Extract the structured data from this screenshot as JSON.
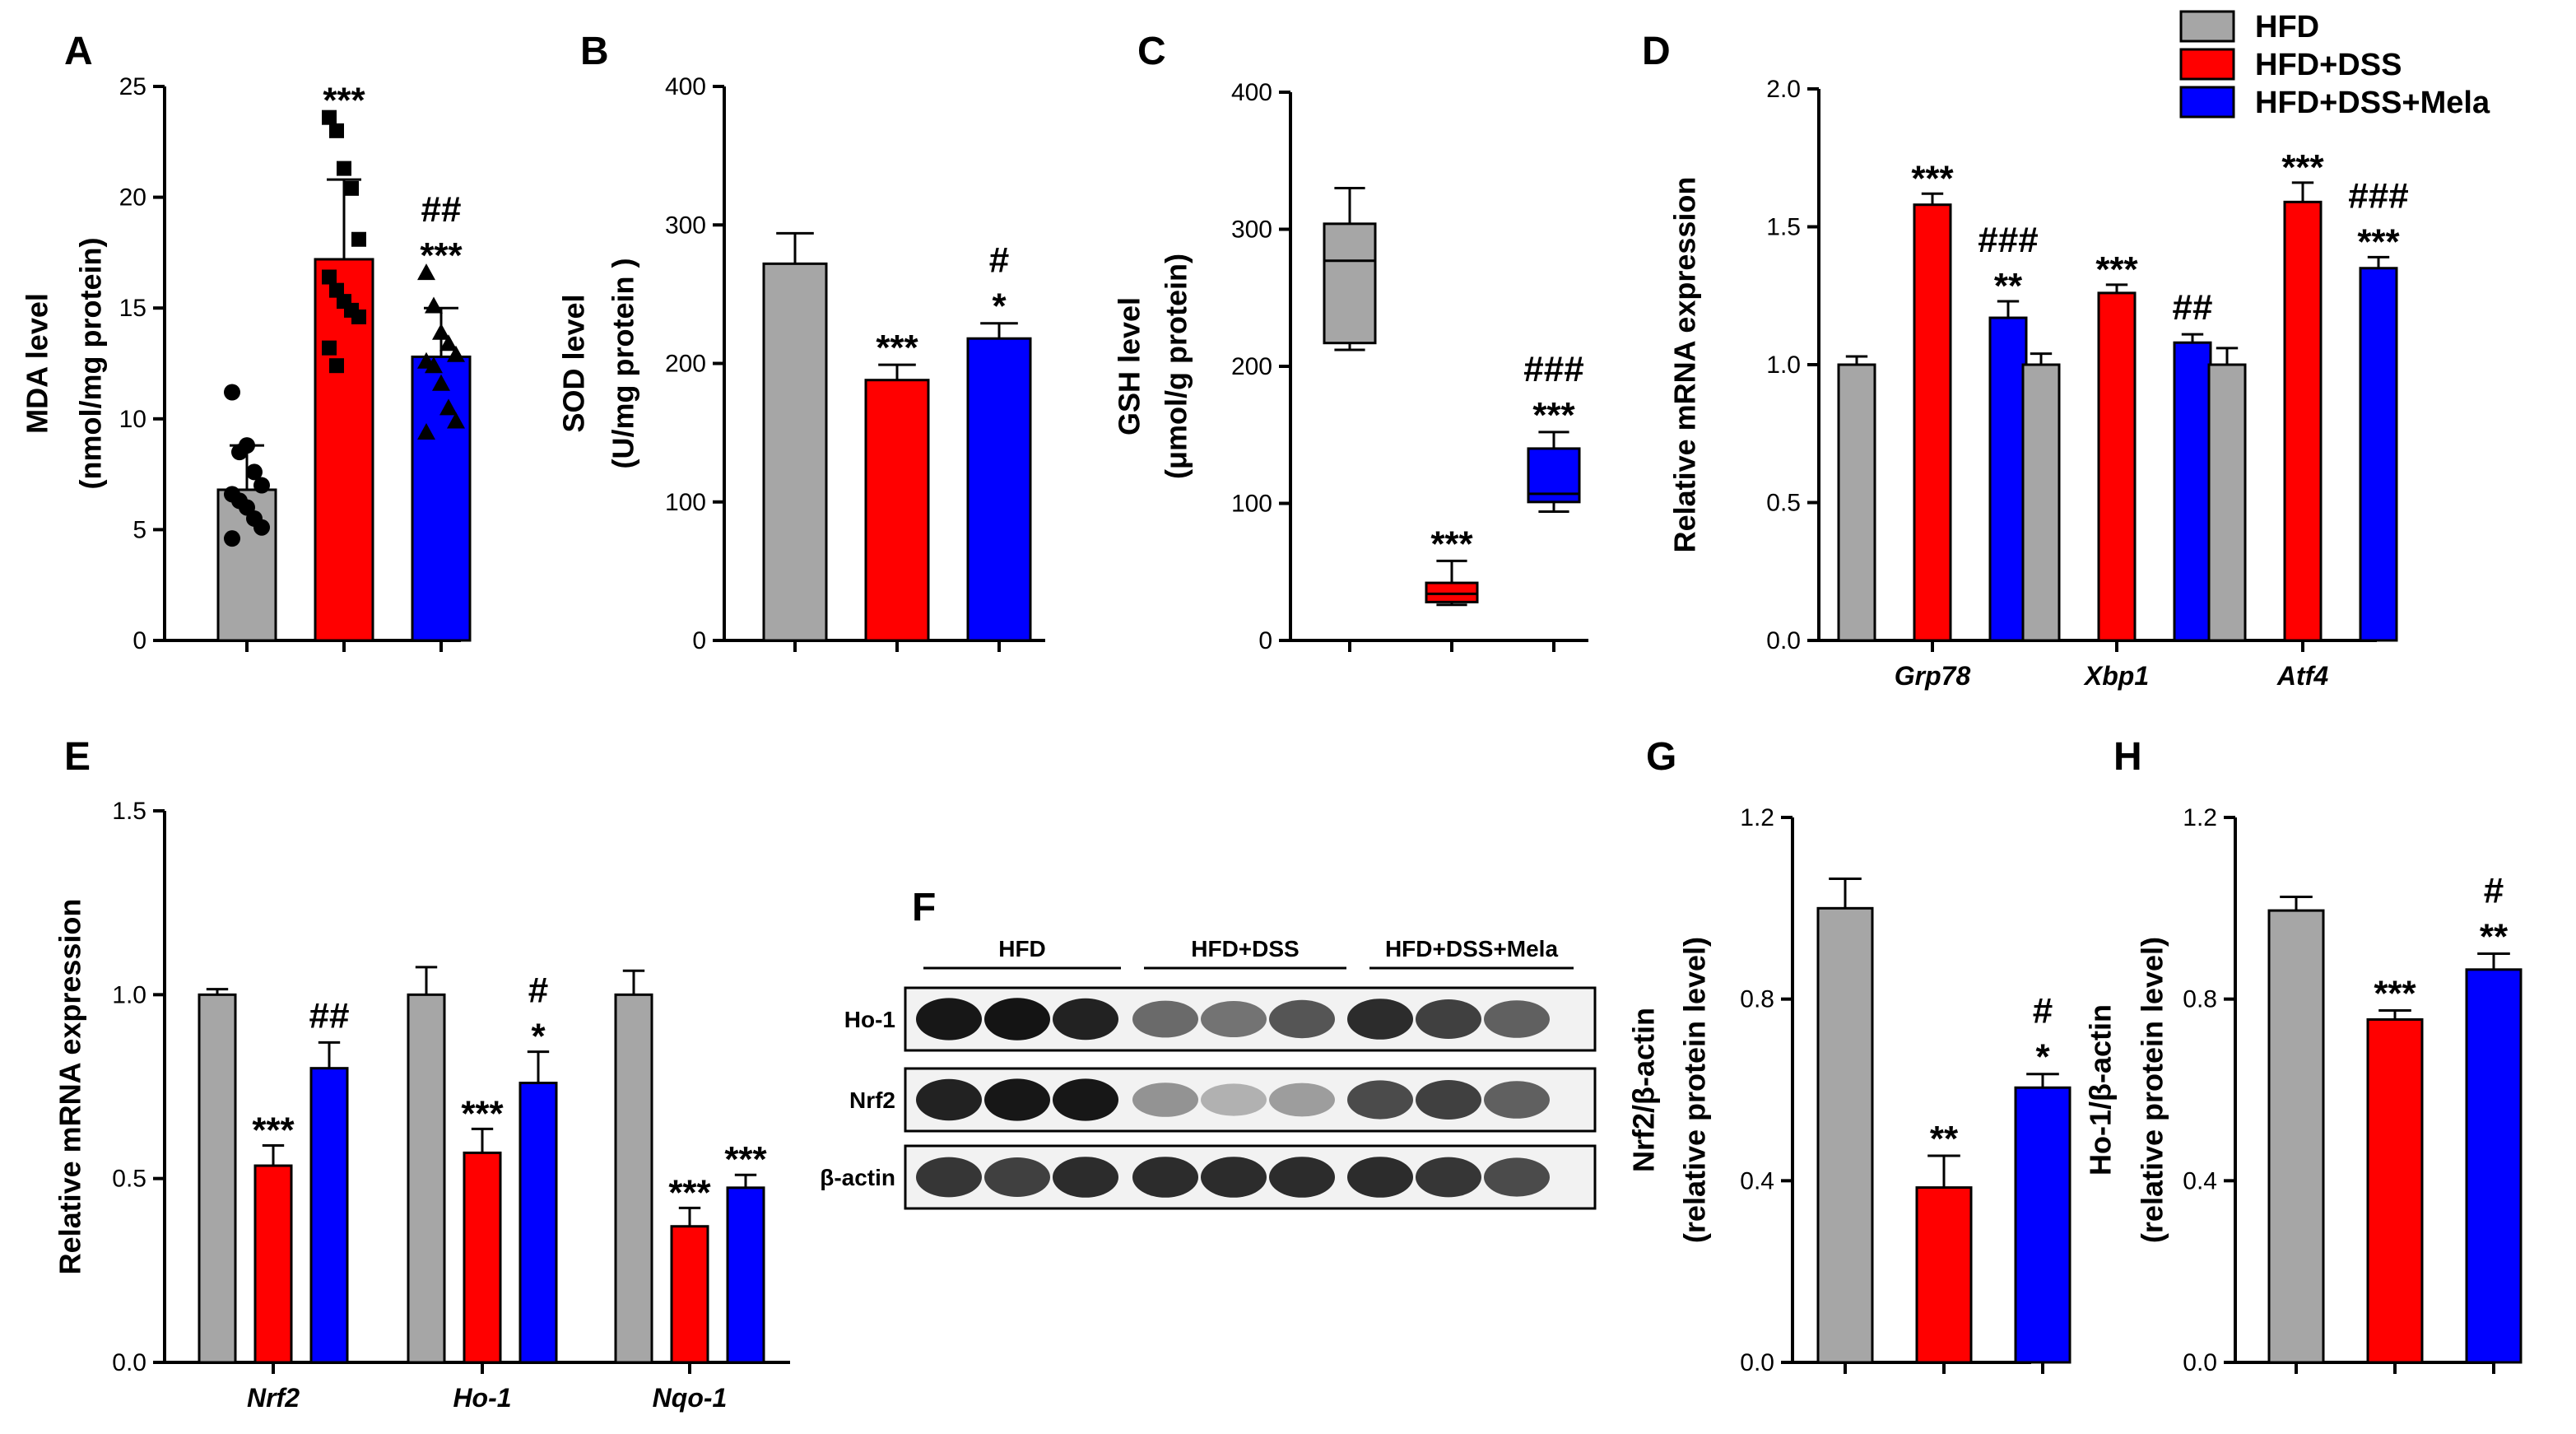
{
  "legend": {
    "entries": [
      {
        "label": "HFD",
        "color": "#A6A6A6"
      },
      {
        "label": "HFD+DSS",
        "color": "#FF0000"
      },
      {
        "label": "HFD+DSS+Mela",
        "color": "#0000FF"
      }
    ]
  },
  "chart_data": [
    {
      "panel": "A",
      "type": "bar",
      "ylabel": "MDA level",
      "ylabel2": "(nmol/mg protein)",
      "ylim": [
        0,
        25
      ],
      "ticks": [
        0,
        5,
        10,
        15,
        20,
        25
      ],
      "categories": [
        "HFD",
        "HFD+DSS",
        "HFD+DSS+Mela"
      ],
      "values": [
        6.8,
        17.2,
        12.8
      ],
      "errors": [
        2.0,
        3.6,
        2.2
      ],
      "points": [
        [
          11.2,
          8.5,
          8.8,
          7.6,
          7.0,
          6.6,
          6.3,
          6.0,
          5.5,
          5.1,
          4.6
        ],
        [
          23.6,
          23.0,
          21.3,
          20.4,
          18.1,
          16.4,
          15.8,
          15.3,
          14.9,
          14.6,
          13.2,
          12.4
        ],
        [
          16.6,
          15.1,
          13.9,
          13.4,
          12.9,
          12.6,
          12.4,
          11.6,
          10.5,
          9.9,
          9.4
        ]
      ],
      "markers": [
        "circle",
        "square",
        "triangle"
      ],
      "sig": [
        [],
        [
          "***"
        ],
        [
          "##",
          "***"
        ]
      ]
    },
    {
      "panel": "B",
      "type": "bar",
      "ylabel": "SOD level",
      "ylabel2": "(U/mg protein )",
      "ylim": [
        0,
        400
      ],
      "ticks": [
        0,
        100,
        200,
        300,
        400
      ],
      "categories": [
        "HFD",
        "HFD+DSS",
        "HFD+DSS+Mela"
      ],
      "values": [
        272,
        188,
        218
      ],
      "errors": [
        22,
        11,
        11
      ],
      "sig": [
        [],
        [
          "***"
        ],
        [
          "#",
          "*"
        ]
      ]
    },
    {
      "panel": "C",
      "type": "box",
      "ylabel": "GSH level",
      "ylabel2": "(μmol/g protein)",
      "ylim": [
        0,
        400
      ],
      "ticks": [
        0,
        100,
        200,
        300,
        400
      ],
      "categories": [
        "HFD",
        "HFD+DSS",
        "HFD+DSS+Mela"
      ],
      "boxes": [
        {
          "min": 212,
          "q1": 217,
          "median": 277,
          "q3": 304,
          "max": 330
        },
        {
          "min": 26,
          "q1": 28,
          "median": 34,
          "q3": 42,
          "max": 58
        },
        {
          "min": 94,
          "q1": 101,
          "median": 107,
          "q3": 140,
          "max": 152
        }
      ],
      "sig": [
        [],
        [
          "***"
        ],
        [
          "###",
          "***"
        ]
      ]
    },
    {
      "panel": "D",
      "type": "bar",
      "ylabel": "Relative mRNA expression",
      "ylim": [
        0,
        2.0
      ],
      "ticks": [
        "0.0",
        "0.5",
        "1.0",
        "1.5",
        "2.0"
      ],
      "categories": [
        "Grp78",
        "Xbp1",
        "Atf4"
      ],
      "series": [
        {
          "name": "HFD",
          "values": [
            1.0,
            1.0,
            1.0
          ],
          "errors": [
            0.03,
            0.04,
            0.06
          ]
        },
        {
          "name": "HFD+DSS",
          "values": [
            1.58,
            1.26,
            1.59
          ],
          "errors": [
            0.04,
            0.03,
            0.07
          ]
        },
        {
          "name": "HFD+DSS+Mela",
          "values": [
            1.17,
            1.08,
            1.35
          ],
          "errors": [
            0.06,
            0.03,
            0.04
          ]
        }
      ],
      "sig": [
        [
          [],
          [
            "***"
          ],
          [
            "###",
            "**"
          ]
        ],
        [
          [],
          [
            "***"
          ],
          [
            "##"
          ]
        ],
        [
          [],
          [
            "***"
          ],
          [
            "###",
            "***"
          ]
        ]
      ]
    },
    {
      "panel": "E",
      "type": "bar",
      "ylabel": "Relative mRNA expression",
      "ylim": [
        0,
        1.5
      ],
      "ticks": [
        "0.0",
        "0.5",
        "1.0",
        "1.5"
      ],
      "categories": [
        "Nrf2",
        "Ho-1",
        "Nqo-1"
      ],
      "series": [
        {
          "name": "HFD",
          "values": [
            1.0,
            1.0,
            1.0
          ],
          "errors": [
            0.015,
            0.075,
            0.065
          ]
        },
        {
          "name": "HFD+DSS",
          "values": [
            0.535,
            0.57,
            0.37
          ],
          "errors": [
            0.055,
            0.065,
            0.05
          ]
        },
        {
          "name": "HFD+DSS+Mela",
          "values": [
            0.8,
            0.76,
            0.475
          ],
          "errors": [
            0.07,
            0.085,
            0.035
          ]
        }
      ],
      "sig": [
        [
          [],
          [
            "***"
          ],
          [
            "##"
          ]
        ],
        [
          [],
          [
            "***"
          ],
          [
            "#",
            "*"
          ]
        ],
        [
          [],
          [
            "***"
          ],
          [
            "***"
          ]
        ]
      ]
    },
    {
      "panel": "G",
      "type": "bar",
      "ylabel": "Nrf2/β-actin",
      "ylabel2": "(relative protein level)",
      "ylim": [
        0,
        1.2
      ],
      "ticks": [
        "0.0",
        "0.4",
        "0.8",
        "1.2"
      ],
      "categories": [
        "HFD",
        "HFD+DSS",
        "HFD+DSS+Mela"
      ],
      "values": [
        1.0,
        0.385,
        0.605
      ],
      "errors": [
        0.065,
        0.07,
        0.03
      ],
      "sig": [
        [],
        [
          "**"
        ],
        [
          "#",
          "*"
        ]
      ]
    },
    {
      "panel": "H",
      "type": "bar",
      "ylabel": "Ho-1/β-actin",
      "ylabel2": "(relative protein level)",
      "ylim": [
        0,
        1.2
      ],
      "ticks": [
        "0.0",
        "0.4",
        "0.8",
        "1.2"
      ],
      "categories": [
        "HFD",
        "HFD+DSS",
        "HFD+DSS+Mela"
      ],
      "values": [
        0.995,
        0.755,
        0.865
      ],
      "errors": [
        0.03,
        0.02,
        0.035
      ],
      "sig": [
        [],
        [
          "***"
        ],
        [
          "#",
          "**"
        ]
      ]
    }
  ],
  "blot": {
    "panel": "F",
    "groups": [
      "HFD",
      "HFD+DSS",
      "HFD+DSS+Mela"
    ],
    "bands": [
      {
        "label": "Ho-1",
        "intensity": [
          0.95,
          0.97,
          0.9,
          0.55,
          0.5,
          0.65,
          0.85,
          0.75,
          0.6
        ]
      },
      {
        "label": "Nrf2",
        "intensity": [
          0.9,
          0.95,
          0.95,
          0.35,
          0.2,
          0.3,
          0.7,
          0.75,
          0.6
        ]
      },
      {
        "label": "β-actin",
        "intensity": [
          0.8,
          0.75,
          0.85,
          0.85,
          0.85,
          0.85,
          0.85,
          0.8,
          0.7
        ]
      }
    ]
  }
}
